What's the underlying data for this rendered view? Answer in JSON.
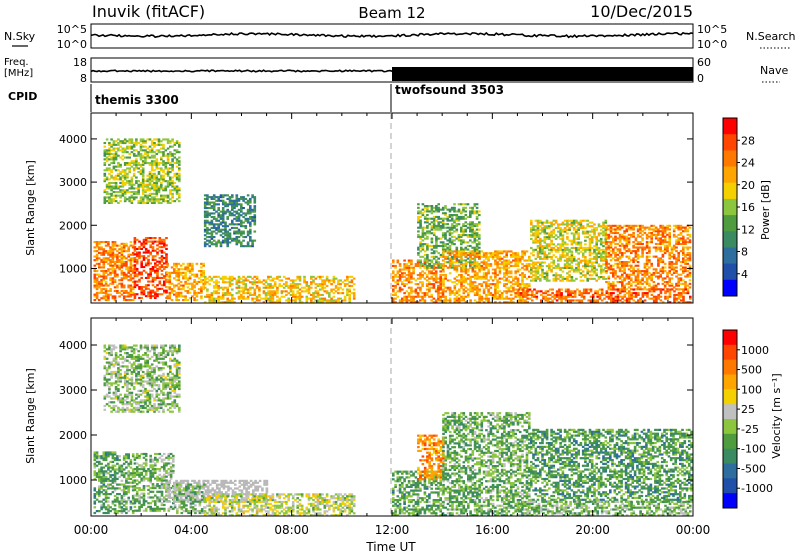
{
  "header": {
    "site": "Inuvik (fitACF)",
    "beam": "Beam 12",
    "date": "10/Dec/2015"
  },
  "top_panels": {
    "nsky_label": "N.Sky",
    "nsky_ticks": [
      "10^5",
      "10^0"
    ],
    "nsearch_label": "N.Search",
    "nsearch_ticks": [
      "10^5",
      "10^0"
    ],
    "freq_label": "Freq.",
    "freq_unit": "[MHz]",
    "freq_ticks": [
      "18",
      "8"
    ],
    "nave_label": "Nave",
    "nave_ticks": [
      "60",
      "0"
    ],
    "cpid_label": "CPID",
    "cpid_segments": [
      {
        "name": "themis 3300",
        "start_hour": 0
      },
      {
        "name": "twofsound 3503",
        "start_hour": 12
      }
    ]
  },
  "axes": {
    "ylabel": "Slant Range [km]",
    "yticks": [
      1000,
      2000,
      3000,
      4000
    ],
    "ylim": [
      200,
      4600
    ],
    "xlabel": "Time UT",
    "xticks": [
      "00:00",
      "04:00",
      "08:00",
      "12:00",
      "16:00",
      "20:00",
      "00:00"
    ],
    "xlim_hours": [
      0,
      24
    ]
  },
  "colors": {
    "power": [
      "#0000ff",
      "#1f4fa8",
      "#2e6e9e",
      "#3a8a62",
      "#4f9c3e",
      "#8cc63f",
      "#f5d000",
      "#ffa500",
      "#ff7800",
      "#ff4500",
      "#ff0000"
    ],
    "velocity": [
      "#0000ff",
      "#1f4fa8",
      "#2e6e9e",
      "#3a8a62",
      "#4f9c3e",
      "#8cc63f",
      "#c0c0c0",
      "#f5d000",
      "#ffa500",
      "#ff7800",
      "#ff4500",
      "#ff0000"
    ],
    "ground_scatter": "#b8b8b8"
  },
  "chart_data": [
    {
      "type": "heatmap",
      "name": "power",
      "colorbar": {
        "label": "Power [dB]",
        "ticks": [
          "28",
          "24",
          "20",
          "16",
          "12",
          "8",
          "4"
        ],
        "range": [
          0,
          32
        ]
      },
      "patches": [
        {
          "t": [
            0.1,
            1.7
          ],
          "r": [
            250,
            1600
          ],
          "v": 24
        },
        {
          "t": [
            1.7,
            3.0
          ],
          "r": [
            300,
            1700
          ],
          "v": 28
        },
        {
          "t": [
            3.0,
            4.5
          ],
          "r": [
            250,
            1100
          ],
          "v": 22
        },
        {
          "t": [
            4.5,
            10.5
          ],
          "r": [
            200,
            800
          ],
          "v": 20
        },
        {
          "t": [
            0.5,
            3.5
          ],
          "r": [
            2500,
            4000
          ],
          "v": 16
        },
        {
          "t": [
            4.5,
            6.5
          ],
          "r": [
            1500,
            2700
          ],
          "v": 10
        },
        {
          "t": [
            12.0,
            14.0
          ],
          "r": [
            200,
            1200
          ],
          "v": 24
        },
        {
          "t": [
            13.0,
            15.5
          ],
          "r": [
            1000,
            2500
          ],
          "v": 14
        },
        {
          "t": [
            14.0,
            17.5
          ],
          "r": [
            200,
            1400
          ],
          "v": 22
        },
        {
          "t": [
            17.5,
            20.5
          ],
          "r": [
            700,
            2100
          ],
          "v": 18
        },
        {
          "t": [
            20.5,
            23.9
          ],
          "r": [
            500,
            2000
          ],
          "v": 24
        },
        {
          "t": [
            17.0,
            23.9
          ],
          "r": [
            200,
            500
          ],
          "v": 26
        }
      ]
    },
    {
      "type": "heatmap",
      "name": "velocity",
      "colorbar": {
        "label": "Velocity [m s⁻¹]",
        "ticks": [
          "1000",
          "500",
          "100",
          "25",
          "-25",
          "-100",
          "-500",
          "-1000"
        ],
        "range": [
          -1200,
          1200
        ]
      },
      "patches": [
        {
          "t": [
            0.1,
            1.7
          ],
          "r": [
            250,
            1600
          ],
          "v": -300
        },
        {
          "t": [
            1.7,
            3.3
          ],
          "r": [
            300,
            1600
          ],
          "v": -200
        },
        {
          "t": [
            3.0,
            7.0
          ],
          "r": [
            500,
            1000
          ],
          "v": 0,
          "ground": true
        },
        {
          "t": [
            3.3,
            4.5
          ],
          "r": [
            250,
            900
          ],
          "v": -150
        },
        {
          "t": [
            4.5,
            10.5
          ],
          "r": [
            200,
            700
          ],
          "v": 80
        },
        {
          "t": [
            0.5,
            3.5
          ],
          "r": [
            2500,
            4000
          ],
          "v": -100
        },
        {
          "t": [
            12.0,
            14.0
          ],
          "r": [
            200,
            1200
          ],
          "v": -300
        },
        {
          "t": [
            13.0,
            14.0
          ],
          "r": [
            1000,
            2000
          ],
          "v": 600
        },
        {
          "t": [
            14.0,
            17.5
          ],
          "r": [
            200,
            2500
          ],
          "v": -250
        },
        {
          "t": [
            17.5,
            23.9
          ],
          "r": [
            500,
            2100
          ],
          "v": -350
        },
        {
          "t": [
            17.0,
            23.9
          ],
          "r": [
            200,
            500
          ],
          "v": -150
        }
      ]
    }
  ]
}
